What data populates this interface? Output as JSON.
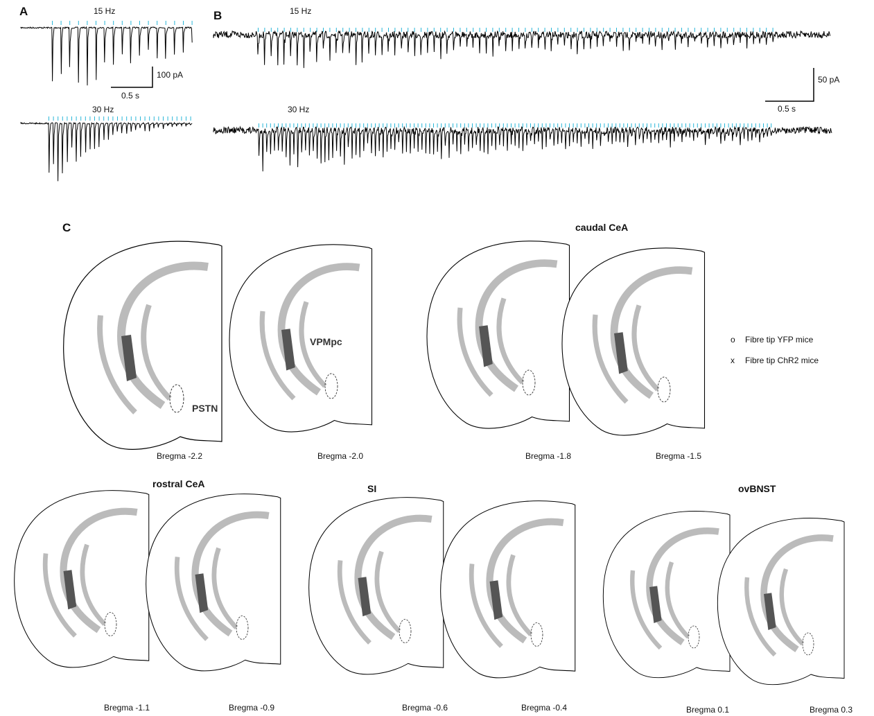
{
  "panel_a": {
    "label": "A",
    "top_frequency": "15 Hz",
    "bottom_frequency": "30 Hz",
    "scale_y": "100 pA",
    "scale_x": "0.5 s"
  },
  "panel_b": {
    "label": "B",
    "top_frequency": "15 Hz",
    "bottom_frequency": "30 Hz",
    "scale_y": "50 pA",
    "scale_x": "0.5 s"
  },
  "panel_c": {
    "label": "C",
    "groups": [
      "caudal CeA",
      "rostral CeA",
      "SI",
      "ovBNST"
    ],
    "annotations": [
      "VPMpc",
      "PSTN"
    ],
    "sections": [
      "Bregma -2.2",
      "Bregma -2.0",
      "Bregma -1.8",
      "Bregma -1.5",
      "Bregma -1.1",
      "Bregma -0.9",
      "Bregma -0.6",
      "Bregma -0.4",
      "Bregma 0.1",
      "Bregma 0.3"
    ],
    "legend": [
      {
        "symbol": "o",
        "label": "Fibre tip YFP mice"
      },
      {
        "symbol": "x",
        "label": "Fibre tip ChR2 mice"
      }
    ]
  }
}
